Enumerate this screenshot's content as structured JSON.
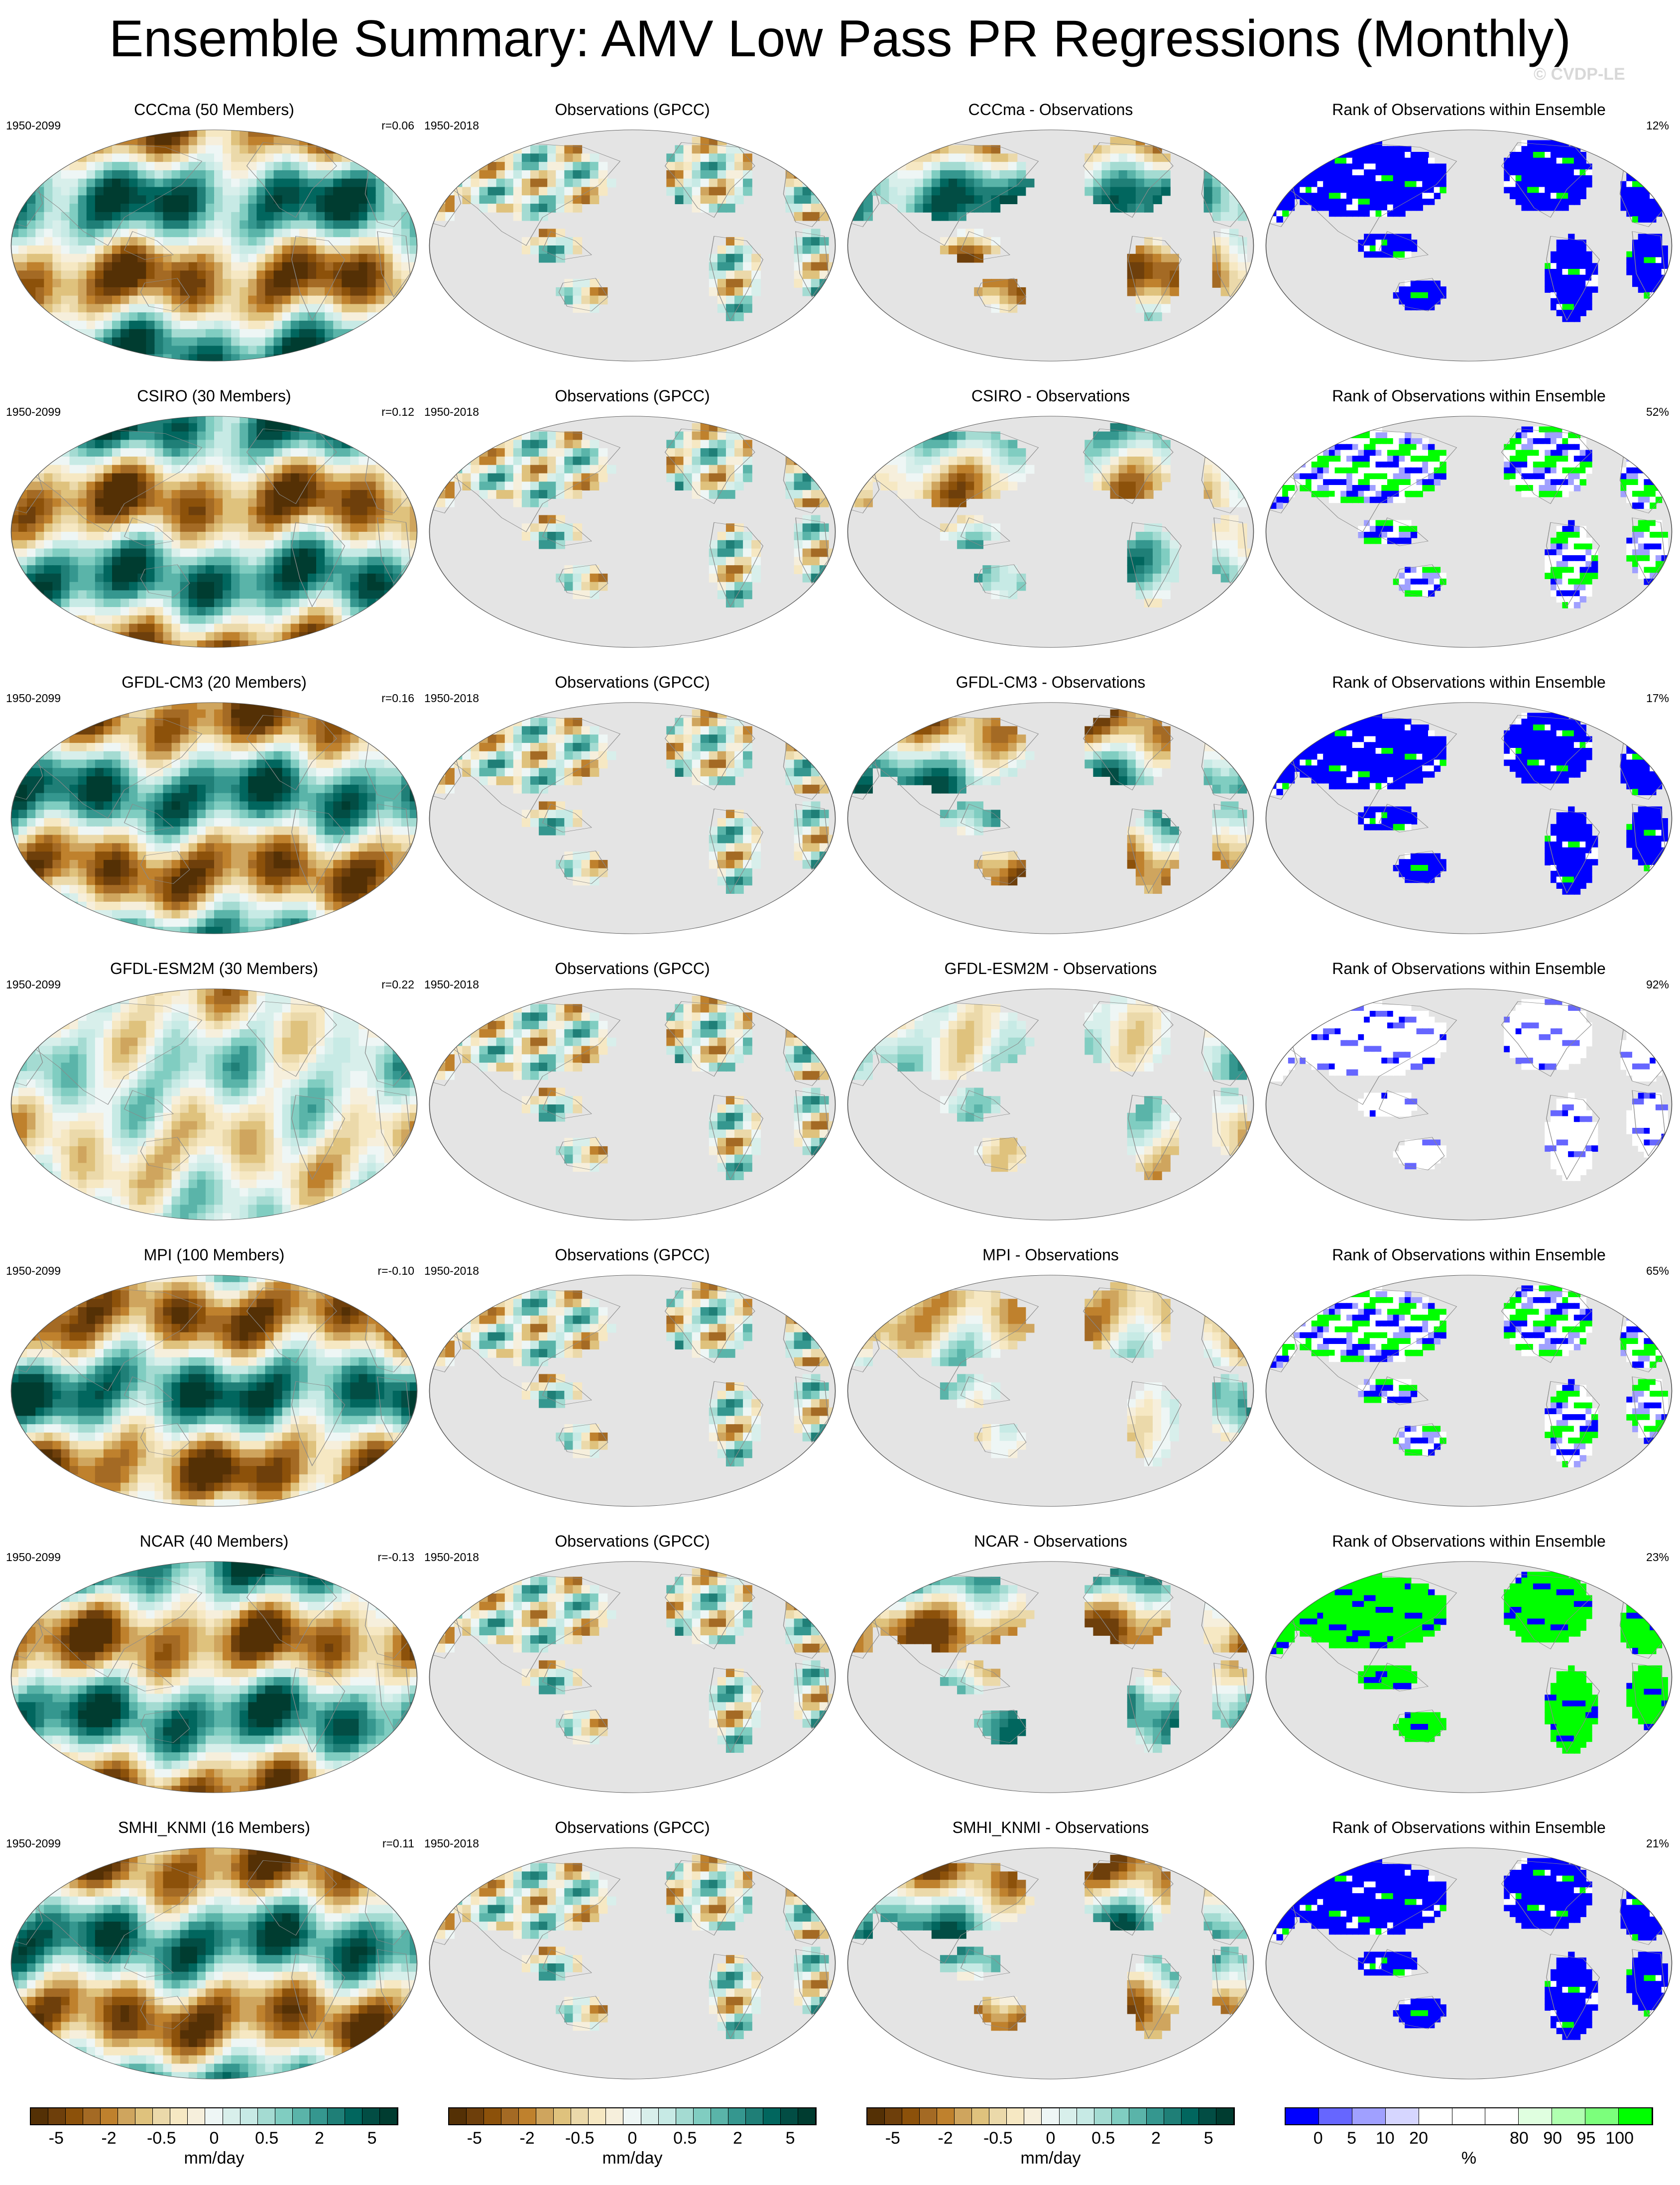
{
  "title": "Ensemble Summary: AMV Low Pass PR Regressions (Monthly)",
  "watermark": "© CVDP-LE",
  "columns": {
    "observations_title": "Observations (GPCC)",
    "rank_title": "Rank of Observations within Ensemble",
    "diff_suffix": " - Observations"
  },
  "rows": [
    {
      "model": "CCCma",
      "members": 50,
      "ens_title": "CCCma (50 Members)",
      "years": "1950-2099",
      "r": "r=0.06",
      "obs_years": "1950-2018",
      "diff_title": "CCCma - Observations",
      "rank_pct": "12%",
      "ens_mode": 1,
      "diff_mode": 1,
      "rank_mode": "low"
    },
    {
      "model": "CSIRO",
      "members": 30,
      "ens_title": "CSIRO (30 Members)",
      "years": "1950-2099",
      "r": "r=0.12",
      "obs_years": "1950-2018",
      "diff_title": "CSIRO - Observations",
      "rank_pct": "52%",
      "ens_mode": -1,
      "diff_mode": -0.6,
      "rank_mode": "mixed"
    },
    {
      "model": "GFDL-CM3",
      "members": 20,
      "ens_title": "GFDL-CM3 (20 Members)",
      "years": "1950-2099",
      "r": "r=0.16",
      "obs_years": "1950-2018",
      "diff_title": "GFDL-CM3 - Observations",
      "rank_pct": "17%",
      "ens_mode": 1,
      "diff_mode": 1,
      "rank_mode": "low"
    },
    {
      "model": "GFDL-ESM2M",
      "members": 30,
      "ens_title": "GFDL-ESM2M (30 Members)",
      "years": "1950-2099",
      "r": "r=0.22",
      "obs_years": "1950-2018",
      "diff_title": "GFDL-ESM2M - Observations",
      "rank_pct": "92%",
      "ens_mode": 0.3,
      "diff_mode": 0.3,
      "rank_mode": "mid"
    },
    {
      "model": "MPI",
      "members": 100,
      "ens_title": "MPI (100 Members)",
      "years": "1950-2099",
      "r": "r=-0.10",
      "obs_years": "1950-2018",
      "diff_title": "MPI - Observations",
      "rank_pct": "65%",
      "ens_mode": -1,
      "diff_mode": -0.6,
      "rank_mode": "mixed"
    },
    {
      "model": "NCAR",
      "members": 40,
      "ens_title": "NCAR (40 Members)",
      "years": "1950-2099",
      "r": "r=-0.13",
      "obs_years": "1950-2018",
      "diff_title": "NCAR - Observations",
      "rank_pct": "23%",
      "ens_mode": -1,
      "diff_mode": -1,
      "rank_mode": "high"
    },
    {
      "model": "SMHI_KNMI",
      "members": 16,
      "ens_title": "SMHI_KNMI (16 Members)",
      "years": "1950-2099",
      "r": "r=0.11",
      "obs_years": "1950-2018",
      "diff_title": "SMHI_KNMI - Observations",
      "rank_pct": "21%",
      "ens_mode": 1,
      "diff_mode": 1,
      "rank_mode": "low"
    }
  ],
  "pr_colorbar": {
    "unit": "mm/day",
    "tick_labels": [
      "-5",
      "-2",
      "-0.5",
      "0",
      "0.5",
      "2",
      "5"
    ],
    "colors": [
      "#543005",
      "#6e3f0b",
      "#8c510a",
      "#a46a24",
      "#bf812d",
      "#cfa55e",
      "#dfc27d",
      "#ebd9aa",
      "#f6e8c3",
      "#f6efdc",
      "#eef6f5",
      "#d8efeb",
      "#c7eae5",
      "#a4dbd2",
      "#80cdc1",
      "#5ab4a9",
      "#35978f",
      "#1f7f77",
      "#01665e",
      "#024d44",
      "#003c30"
    ]
  },
  "rank_colorbar": {
    "unit": "%",
    "tick_labels": [
      "0",
      "5",
      "10",
      "20",
      "80",
      "90",
      "95",
      "100"
    ],
    "colors": [
      "#0000ff",
      "#6666ff",
      "#a0a0ff",
      "#d6d6ff",
      "#ffffff",
      "#ffffff",
      "#ffffff",
      "#e0ffe0",
      "#b0ffb0",
      "#7cff7c",
      "#00ff00"
    ]
  },
  "chart_data": {
    "type": "heatmap",
    "layout": "7 rows x 4 columns of global map panels",
    "projection": "Robinson (Pacific-centered)",
    "panel_types": [
      "ensemble mean regression",
      "observations",
      "ensemble minus observations",
      "rank of observations"
    ],
    "fields": "gridded precipitation regression maps; values not individually labeled",
    "value_units": "mm/day",
    "rank_units": "%"
  }
}
